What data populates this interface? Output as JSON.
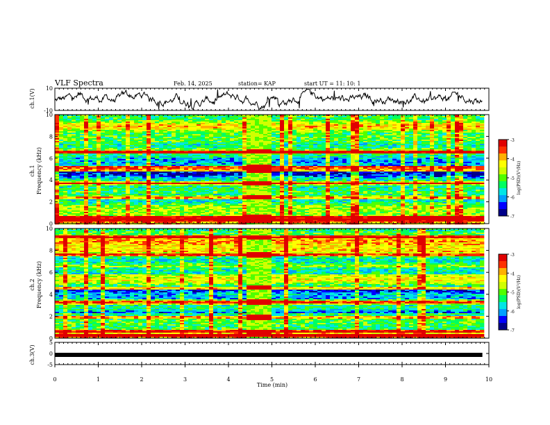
{
  "header": {
    "title": "VLF Spectra",
    "date": "Feb. 14, 2025",
    "station": "station= KAP",
    "start": "start  UT =   11: 10: 1"
  },
  "colors": {
    "spectrogram_palette": [
      "#00008a",
      "#0000ff",
      "#00a0ff",
      "#00e6e6",
      "#00ff60",
      "#50ff00",
      "#d0ff00",
      "#ffff00",
      "#ffb000",
      "#ff3000",
      "#e00000"
    ],
    "trace": "#000000"
  },
  "chart_data": [
    {
      "type": "line",
      "panel": "ch1-waveform",
      "ylabel": "ch.1(V)",
      "ylim": [
        -10,
        10
      ],
      "ytick_labels": [
        "10",
        "-10"
      ],
      "xlim": [
        0,
        10
      ]
    },
    {
      "type": "heatmap",
      "panel": "ch1-spectrogram",
      "ylabel_channel": "ch.1",
      "ylabel": "Frequency (kHz)",
      "ylim": [
        0,
        10
      ],
      "ytick_labels": [
        "10",
        "8",
        "6",
        "4",
        "2",
        "0"
      ],
      "xlim": [
        0,
        10
      ],
      "data_extent_min": 9.85,
      "gap_interval_min": [
        4.38,
        4.95
      ],
      "strong_bands_khz": [
        0.3,
        0.6,
        2.4,
        3.7,
        4.9,
        5.2,
        6.6
      ],
      "colorbar": {
        "label": "log(PSD)(V²/Hz)",
        "range": [
          -7,
          -3
        ],
        "tick_labels": [
          "-3",
          "-4",
          "-5",
          "-6",
          "-7"
        ]
      }
    },
    {
      "type": "heatmap",
      "panel": "ch2-spectrogram",
      "ylabel_channel": "ch.2",
      "ylabel": "Frequency (kHz)",
      "ylim": [
        0,
        10
      ],
      "ytick_labels": [
        "10",
        "8",
        "6",
        "4",
        "2",
        "0"
      ],
      "xlim": [
        0,
        10
      ],
      "data_extent_min": 9.85,
      "gap_interval_min": [
        4.38,
        4.95
      ],
      "strong_bands_khz": [
        0.3,
        0.6,
        1.9,
        3.3,
        4.6,
        7.6,
        9.2
      ],
      "colorbar": {
        "label": "log(PSD)(V²/Hz)",
        "range": [
          -7,
          -3
        ],
        "tick_labels": [
          "-3",
          "-4",
          "-5",
          "-6",
          "-7"
        ]
      }
    },
    {
      "type": "line",
      "panel": "ch3-waveform",
      "ylabel": "ch.3(V)",
      "ylim": [
        -5,
        5
      ],
      "ytick_labels": [
        "5",
        "0",
        "-5"
      ],
      "xlim": [
        0,
        10
      ],
      "xlabel": "Time  (min)",
      "xtick_labels": [
        "0",
        "1",
        "2",
        "3",
        "4",
        "5",
        "6",
        "7",
        "8",
        "9",
        "10"
      ]
    }
  ]
}
